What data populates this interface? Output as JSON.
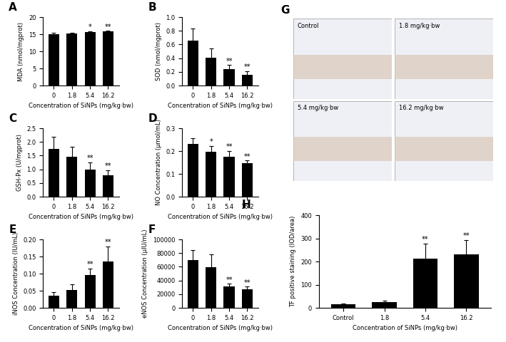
{
  "chart_data": [
    {
      "type": "bar",
      "title": "A",
      "x_label": "Concentration of SiNPs (mg/kg·bw)",
      "y_label": "MDA (nmol/mgprot)",
      "categories": [
        "0",
        "1.8",
        "5.4",
        "16.2"
      ],
      "values": [
        15.0,
        15.3,
        15.6,
        15.8
      ],
      "error": [
        0.4,
        0.2,
        0.2,
        0.2
      ],
      "annotations": [
        null,
        null,
        "*",
        "**"
      ],
      "color": "#000000",
      "ylim": [
        0,
        20
      ],
      "yticks": [
        0,
        5,
        10,
        15,
        20
      ]
    },
    {
      "type": "bar",
      "title": "B",
      "x_label": "Concentration of SiNPs (mg/kg·bw)",
      "y_label": "SOD (nmol/mgprot)",
      "categories": [
        "0",
        "1.8",
        "5.4",
        "16.2"
      ],
      "values": [
        0.66,
        0.41,
        0.24,
        0.16
      ],
      "error": [
        0.17,
        0.13,
        0.06,
        0.05
      ],
      "annotations": [
        null,
        null,
        "**",
        "**"
      ],
      "color": "#000000",
      "ylim": [
        0,
        1.0
      ],
      "yticks": [
        {
          "value": 0,
          "label": "0.0"
        },
        0.2,
        0.4,
        0.6,
        0.8,
        {
          "value": 1.0,
          "label": "1.0"
        }
      ]
    },
    {
      "type": "bar",
      "title": "C",
      "x_label": "Concentration of SiNPs (mg/kg·bw)",
      "y_label": "GSH-Px (U/mgprot)",
      "categories": [
        "0",
        "1.8",
        "5.4",
        "16.2"
      ],
      "values": [
        1.75,
        1.47,
        1.0,
        0.77
      ],
      "error": [
        0.45,
        0.35,
        0.25,
        0.2
      ],
      "annotations": [
        null,
        null,
        "**",
        "**"
      ],
      "color": "#000000",
      "ylim": [
        0,
        2.5
      ],
      "yticks": [
        {
          "value": 0,
          "label": "0.0"
        },
        0.5,
        1.0,
        1.5,
        2.0,
        2.5
      ]
    },
    {
      "type": "bar",
      "title": "D",
      "x_label": "Concentration of SiNPs (mg/kg·bw)",
      "y_label": "NO Concentration (μmol/mL)",
      "categories": [
        "0",
        "1.8",
        "5.4",
        "16.2"
      ],
      "values": [
        0.23,
        0.197,
        0.175,
        0.148
      ],
      "error": [
        0.025,
        0.025,
        0.025,
        0.01
      ],
      "annotations": [
        null,
        "*",
        "**",
        "**"
      ],
      "color": "#000000",
      "ylim": [
        0,
        0.3
      ],
      "yticks": [
        {
          "value": 0,
          "label": "0.0"
        },
        0.1,
        0.2,
        0.3
      ]
    },
    {
      "type": "bar",
      "title": "E",
      "x_label": "Concentration of SiNPs (mg/kg·bw)",
      "y_label": "iNOS Concentration (IU/mL)",
      "categories": [
        "0",
        "1.8",
        "5.4",
        "16.2"
      ],
      "values": [
        0.035,
        0.052,
        0.095,
        0.135
      ],
      "error": [
        0.01,
        0.017,
        0.02,
        0.045
      ],
      "annotations": [
        null,
        null,
        "**",
        "**"
      ],
      "color": "#000000",
      "ylim": [
        0,
        0.2
      ],
      "yticks": [
        {
          "value": 0,
          "label": "0.00"
        },
        0.05,
        {
          "value": 0.1,
          "label": "0.10"
        },
        0.15,
        {
          "value": 0.2,
          "label": "0.20"
        }
      ]
    },
    {
      "type": "bar",
      "title": "F",
      "x_label": "Concentration of SiNPs (mg/kg·bw)",
      "y_label": "eNOS Concentration (μIU/mL)",
      "categories": [
        "0",
        "1.8",
        "5.4",
        "16.2"
      ],
      "values": [
        70000,
        59000,
        31000,
        27000
      ],
      "error": [
        14000,
        19000,
        4000,
        4000
      ],
      "annotations": [
        null,
        null,
        "**",
        "**"
      ],
      "color": "#000000",
      "ylim": [
        0,
        100000
      ],
      "yticks": [
        0,
        20000,
        40000,
        60000,
        80000,
        100000
      ]
    },
    {
      "type": "bar",
      "title": "H",
      "x_label": "Concentration of SiNPs (mg/kg·bw)",
      "y_label": "TF positive staining (IOD/area)",
      "categories": [
        "Control",
        "1.8",
        "5.4",
        "16.2"
      ],
      "values": [
        15,
        25,
        213,
        233
      ],
      "error": [
        5,
        7,
        65,
        60
      ],
      "annotations": [
        null,
        null,
        "**",
        "**"
      ],
      "color": "#000000",
      "ylim": [
        0,
        400
      ],
      "yticks": [
        0,
        100,
        200,
        300,
        400
      ]
    }
  ],
  "micrographs": {
    "panel": "G",
    "labels": [
      "Control",
      "1.8 mg/kg·bw",
      "5.4 mg/kg·bw",
      "16.2 mg/kg·bw"
    ]
  }
}
